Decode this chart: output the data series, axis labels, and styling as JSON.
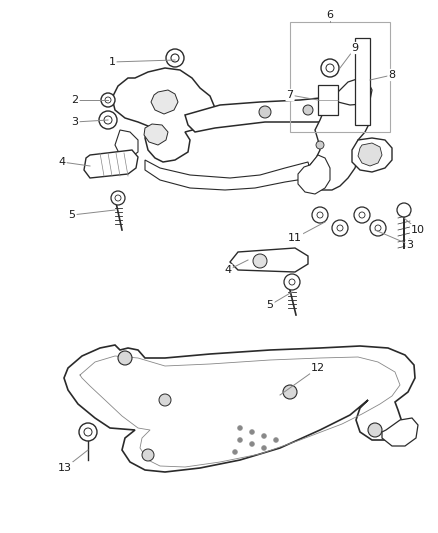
{
  "bg_color": "#ffffff",
  "line_color": "#2a2a2a",
  "label_color": "#1a1a1a",
  "callout_line_color": "#888888",
  "fig_width": 4.38,
  "fig_height": 5.33,
  "dpi": 100
}
